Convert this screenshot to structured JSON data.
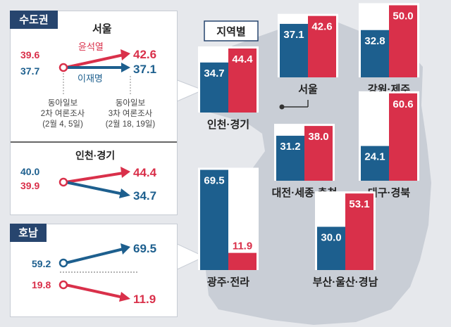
{
  "colors": {
    "blue": "#1d5f8e",
    "red": "#d9304a",
    "dark": "#27456e",
    "map": "#c9ced6"
  },
  "left": {
    "capital": {
      "tag": "수도권",
      "region": "서울",
      "poll_left": "동아일보\n2차 여론조사\n(2월 4, 5일)",
      "poll_right": "동아일보\n3차 여론조사\n(2월 18, 19일)",
      "candidate_red": "윤석열",
      "candidate_blue": "이재명",
      "red_from": "39.6",
      "red_to": "42.6",
      "blue_from": "37.7",
      "blue_to": "37.1",
      "region2": "인천·경기",
      "r2_blue_from": "40.0",
      "r2_red_to": "44.4",
      "r2_red_from": "39.9",
      "r2_blue_to": "34.7"
    },
    "honam": {
      "tag": "호남",
      "blue_from": "59.2",
      "blue_to": "69.5",
      "red_from": "19.8",
      "red_to": "11.9"
    }
  },
  "chart_data": {
    "type": "bar",
    "title": "지역별",
    "series_names": [
      "이재명",
      "윤석열"
    ],
    "regions": [
      {
        "name": "인천·경기",
        "blue": 34.7,
        "red": 44.4,
        "blue_label": "34.7",
        "red_label": "44.4"
      },
      {
        "name": "서울",
        "blue": 37.1,
        "red": 42.6,
        "blue_label": "37.1",
        "red_label": "42.6"
      },
      {
        "name": "강원·제주",
        "blue": 32.8,
        "red": 50.0,
        "blue_label": "32.8",
        "red_label": "50.0"
      },
      {
        "name": "대전·세종·충청",
        "blue": 31.2,
        "red": 38.0,
        "blue_label": "31.2",
        "red_label": "38.0"
      },
      {
        "name": "대구·경북",
        "blue": 24.1,
        "red": 60.6,
        "blue_label": "24.1",
        "red_label": "60.6"
      },
      {
        "name": "광주·전라",
        "blue": 69.5,
        "red": 11.9,
        "blue_label": "69.5",
        "red_label": "11.9"
      },
      {
        "name": "부산·울산·경남",
        "blue": 30.0,
        "red": 53.1,
        "blue_label": "30.0",
        "red_label": "53.1"
      }
    ]
  }
}
